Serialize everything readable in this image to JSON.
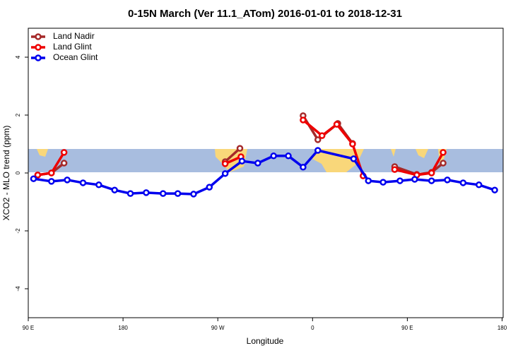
{
  "chart_data": {
    "type": "line",
    "title": "0-15N March (Ver 11.1_ATom)   2016-01-01 to 2018-12-31",
    "x_label": "Longitude",
    "y_label": "XCO2 - MLO trend (ppm)",
    "xlim": [
      90,
      541
    ],
    "ylim": [
      -5,
      5
    ],
    "xticks": [
      {
        "value": 90,
        "label": "90 E"
      },
      180,
      {
        "value": 270,
        "label": "90 W"
      },
      {
        "value": 360,
        "label": "0"
      },
      {
        "value": 450,
        "label": "90 E"
      },
      {
        "value": 540,
        "label": "180"
      }
    ],
    "yticks": [
      -4,
      -2,
      0,
      2,
      4
    ],
    "legend": "top-left",
    "series": [
      {
        "name": "Land Nadir",
        "color": "#a52a2a",
        "x": [
          99,
          112,
          124,
          null,
          277,
          291,
          null,
          351,
          365,
          384,
          398,
          null,
          438,
          459,
          473,
          484
        ],
        "values": [
          -0.07,
          0,
          0.34,
          null,
          0.39,
          0.85,
          null,
          1.98,
          1.15,
          1.71,
          1.02,
          null,
          0.22,
          -0.05,
          0.02,
          0.34
        ]
      },
      {
        "name": "Land Glint",
        "color": "#ee0000",
        "x": [
          99,
          112,
          124,
          null,
          277,
          292,
          null,
          351,
          369,
          383,
          398,
          408,
          null,
          438,
          459,
          473,
          484
        ],
        "values": [
          -0.07,
          0,
          0.71,
          null,
          0.32,
          0.56,
          null,
          1.83,
          1.29,
          1.68,
          1.0,
          -0.1,
          null,
          0.12,
          -0.07,
          0,
          0.71
        ]
      },
      {
        "name": "Ocean Glint",
        "color": "#0000ee",
        "x": [
          95,
          112,
          127,
          142,
          157,
          172,
          187,
          202,
          218,
          232,
          247,
          262,
          277,
          293,
          308,
          323,
          337,
          351,
          365,
          399,
          413,
          427,
          443,
          457,
          473,
          488,
          503,
          518,
          533
        ],
        "values": [
          -0.2,
          -0.29,
          -0.24,
          -0.34,
          -0.41,
          -0.59,
          -0.71,
          -0.68,
          -0.71,
          -0.71,
          -0.73,
          -0.49,
          -0.02,
          0.41,
          0.34,
          0.59,
          0.59,
          0.2,
          0.78,
          0.49,
          -0.27,
          -0.32,
          -0.27,
          -0.22,
          -0.27,
          -0.24,
          -0.34,
          -0.41,
          -0.59
        ]
      }
    ]
  }
}
